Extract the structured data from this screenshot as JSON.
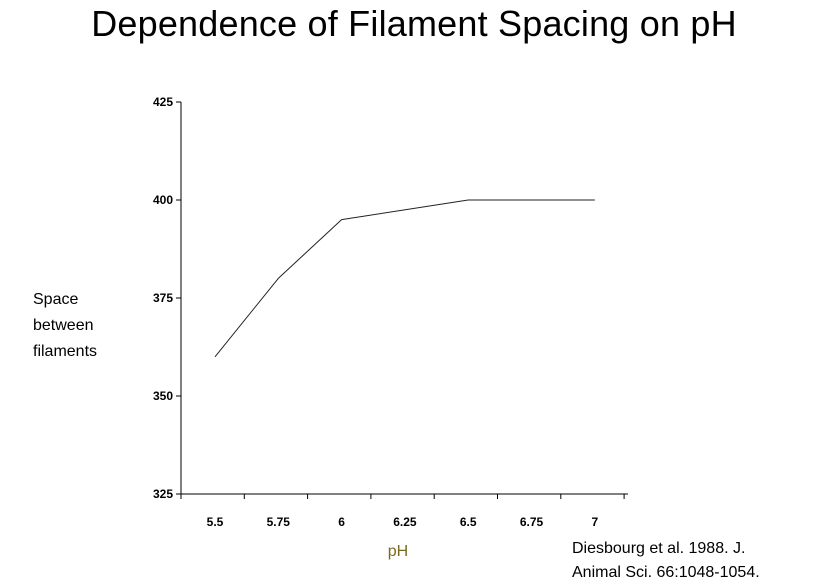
{
  "title": "Dependence of Filament Spacing on pH",
  "ylabel_lines": [
    "Space",
    "between",
    "filaments"
  ],
  "citation_lines": [
    "Diesbourg et al. 1988. J.",
    "Animal Sci. 66:1048-1054."
  ],
  "colors": {
    "text": "#000000",
    "axis": "#000000",
    "line": "#222222",
    "xlabel": "#7a6a1e"
  },
  "chart_data": {
    "type": "line",
    "title": "Dependence of Filament Spacing on pH",
    "xlabel": "pH",
    "ylabel": "Space between filaments",
    "categories": [
      "5.5",
      "5.75",
      "6",
      "6.25",
      "6.5",
      "6.75",
      "7"
    ],
    "x_tick_labels": [
      "5.5",
      "5.75",
      "6",
      "6.25",
      "6.5",
      "6.75",
      "7"
    ],
    "y_ticks": [
      325,
      350,
      375,
      400,
      425
    ],
    "ylim": [
      325,
      425
    ],
    "grid": false,
    "legend": "none",
    "series": [
      {
        "x": [
          5.5,
          5.75,
          6,
          6.5,
          7
        ],
        "values": [
          360,
          380,
          395,
          400,
          400
        ]
      }
    ]
  }
}
